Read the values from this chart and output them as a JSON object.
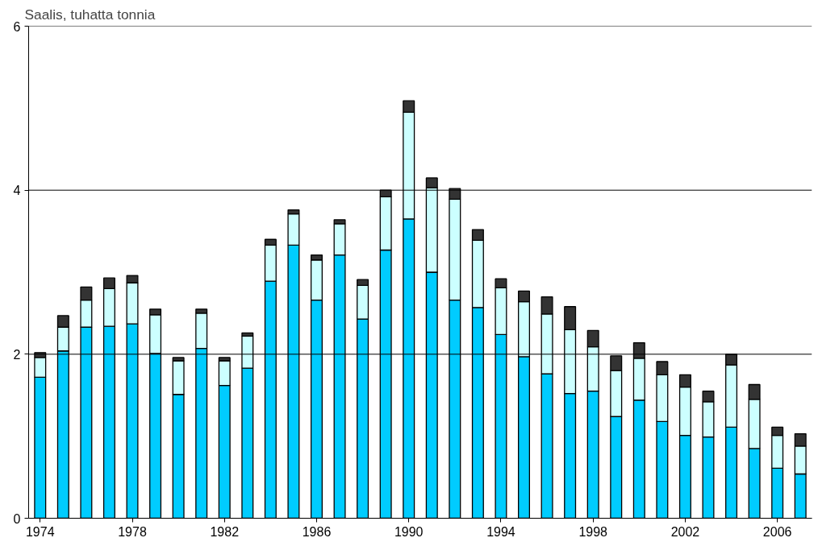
{
  "chart_data": {
    "type": "bar",
    "stacked": true,
    "ylabel": "Saalis, tuhatta tonnia",
    "x": [
      1974,
      1975,
      1976,
      1977,
      1978,
      1979,
      1980,
      1981,
      1982,
      1983,
      1984,
      1985,
      1986,
      1987,
      1988,
      1989,
      1990,
      1991,
      1992,
      1993,
      1994,
      1995,
      1996,
      1997,
      1998,
      1999,
      2000,
      2001,
      2002,
      2003,
      2004,
      2005,
      2006,
      2007
    ],
    "series": [
      {
        "color": "#00ccff",
        "values": [
          1.72,
          2.04,
          2.33,
          2.34,
          2.37,
          2.01,
          1.51,
          2.07,
          1.62,
          1.83,
          2.89,
          3.33,
          2.66,
          3.21,
          2.43,
          3.27,
          3.65,
          3.0,
          2.66,
          2.57,
          2.24,
          1.97,
          1.76,
          1.52,
          1.55,
          1.24,
          1.44,
          1.18,
          1.01,
          0.99,
          1.11,
          0.85,
          0.61,
          0.54
        ]
      },
      {
        "color": "#ccffff",
        "values": [
          0.24,
          0.29,
          0.33,
          0.46,
          0.5,
          0.47,
          0.41,
          0.43,
          0.3,
          0.39,
          0.44,
          0.38,
          0.49,
          0.38,
          0.41,
          0.65,
          1.3,
          1.03,
          1.23,
          0.82,
          0.57,
          0.67,
          0.73,
          0.78,
          0.54,
          0.56,
          0.51,
          0.57,
          0.59,
          0.43,
          0.76,
          0.6,
          0.4,
          0.34
        ]
      },
      {
        "color": "#333333",
        "values": [
          0.06,
          0.14,
          0.16,
          0.13,
          0.09,
          0.07,
          0.04,
          0.05,
          0.04,
          0.04,
          0.07,
          0.05,
          0.06,
          0.05,
          0.07,
          0.08,
          0.14,
          0.12,
          0.13,
          0.13,
          0.11,
          0.13,
          0.21,
          0.28,
          0.2,
          0.18,
          0.19,
          0.16,
          0.15,
          0.13,
          0.13,
          0.18,
          0.1,
          0.15
        ]
      }
    ],
    "xlim": [
      1973.5,
      2007.5
    ],
    "xticks": [
      1974,
      1978,
      1982,
      1986,
      1990,
      1994,
      1998,
      2002,
      2006
    ],
    "ylim": [
      0,
      6
    ],
    "yticks": [
      0,
      2,
      4,
      6
    ],
    "grid": "y"
  }
}
